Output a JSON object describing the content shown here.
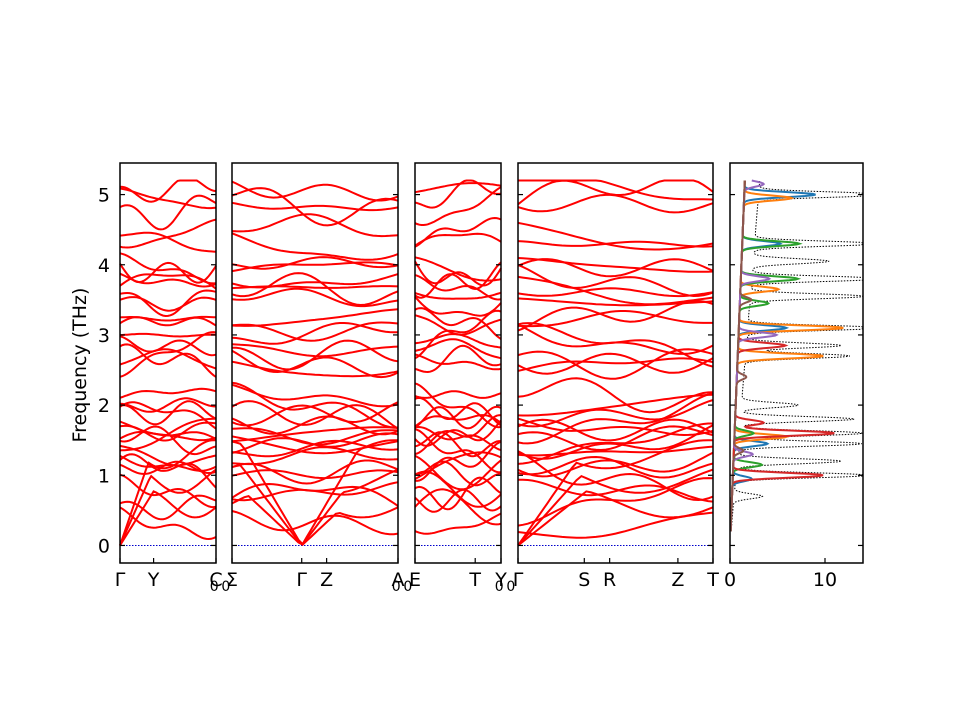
{
  "chart_data": {
    "type": "line",
    "title": "",
    "ylabel": "Frequency (THz)",
    "ylim": [
      -0.25,
      5.45
    ],
    "yticks": [
      0,
      1,
      2,
      3,
      4,
      5
    ],
    "band_color": "#ff0000",
    "zero_line_color": "#0000cc",
    "panels": [
      {
        "name": "Γ-Y-C0",
        "ticks": [
          {
            "label": "Γ",
            "x": 0.0
          },
          {
            "label": "Y",
            "x": 0.35
          },
          {
            "label": "C",
            "x": 1.0
          }
        ],
        "extra_text": "0"
      },
      {
        "name": "Σ0-Γ-Z-A0",
        "ticks": [
          {
            "label": "Σ",
            "x": 0.0
          },
          {
            "label": "Γ",
            "x": 0.42
          },
          {
            "label": "Z",
            "x": 0.57
          },
          {
            "label": "A",
            "x": 1.0
          }
        ],
        "extra_text": "0"
      },
      {
        "name": "E0-T-Y",
        "ticks": [
          {
            "label": "E",
            "x": 0.0
          },
          {
            "label": "T",
            "x": 0.7
          },
          {
            "label": "Y",
            "x": 1.0
          }
        ],
        "extra_text": "0"
      },
      {
        "name": "Γ-S-R-Z-T",
        "ticks": [
          {
            "label": "Γ",
            "x": 0.0
          },
          {
            "label": "S",
            "x": 0.34
          },
          {
            "label": "R",
            "x": 0.47
          },
          {
            "label": "Z",
            "x": 0.82
          },
          {
            "label": "T",
            "x": 1.0
          }
        ]
      }
    ],
    "dos": {
      "xlim": [
        0,
        14
      ],
      "xticks": [
        0,
        10
      ],
      "total_color": "#000000",
      "projected_colors": [
        "#1f77b4",
        "#ff7f0e",
        "#2ca02c",
        "#d62728",
        "#9467bd",
        "#8c564b"
      ],
      "total_peaks": [
        {
          "f": 5.0,
          "v": 14
        },
        {
          "f": 4.3,
          "v": 13
        },
        {
          "f": 4.05,
          "v": 8
        },
        {
          "f": 3.8,
          "v": 14
        },
        {
          "f": 3.55,
          "v": 12
        },
        {
          "f": 3.1,
          "v": 14
        },
        {
          "f": 2.85,
          "v": 10
        },
        {
          "f": 2.7,
          "v": 11
        },
        {
          "f": 2.0,
          "v": 6
        },
        {
          "f": 1.8,
          "v": 12
        },
        {
          "f": 1.6,
          "v": 13
        },
        {
          "f": 1.45,
          "v": 13
        },
        {
          "f": 1.2,
          "v": 11
        },
        {
          "f": 1.0,
          "v": 14
        },
        {
          "f": 0.7,
          "v": 3
        }
      ],
      "projected_peaks": [
        [
          {
            "f": 5.0,
            "v": 7.5
          },
          {
            "f": 4.3,
            "v": 4
          },
          {
            "f": 3.1,
            "v": 5
          },
          {
            "f": 1.45,
            "v": 3.5
          },
          {
            "f": 0.95,
            "v": 2
          }
        ],
        [
          {
            "f": 4.95,
            "v": 5
          },
          {
            "f": 3.1,
            "v": 11
          },
          {
            "f": 2.7,
            "v": 9
          },
          {
            "f": 1.55,
            "v": 5.5
          },
          {
            "f": 3.65,
            "v": 4
          }
        ],
        [
          {
            "f": 4.3,
            "v": 6
          },
          {
            "f": 3.8,
            "v": 6
          },
          {
            "f": 3.45,
            "v": 3
          },
          {
            "f": 1.6,
            "v": 2
          },
          {
            "f": 1.15,
            "v": 3
          }
        ],
        [
          {
            "f": 1.6,
            "v": 10.5
          },
          {
            "f": 1.0,
            "v": 9.5
          },
          {
            "f": 1.75,
            "v": 3
          },
          {
            "f": 2.85,
            "v": 5
          }
        ],
        [
          {
            "f": 5.15,
            "v": 2
          },
          {
            "f": 3.8,
            "v": 3
          },
          {
            "f": 3.0,
            "v": 4
          },
          {
            "f": 1.3,
            "v": 2
          }
        ],
        [
          {
            "f": 3.5,
            "v": 1.2
          },
          {
            "f": 2.4,
            "v": 1
          },
          {
            "f": 1.35,
            "v": 1
          }
        ]
      ]
    }
  }
}
